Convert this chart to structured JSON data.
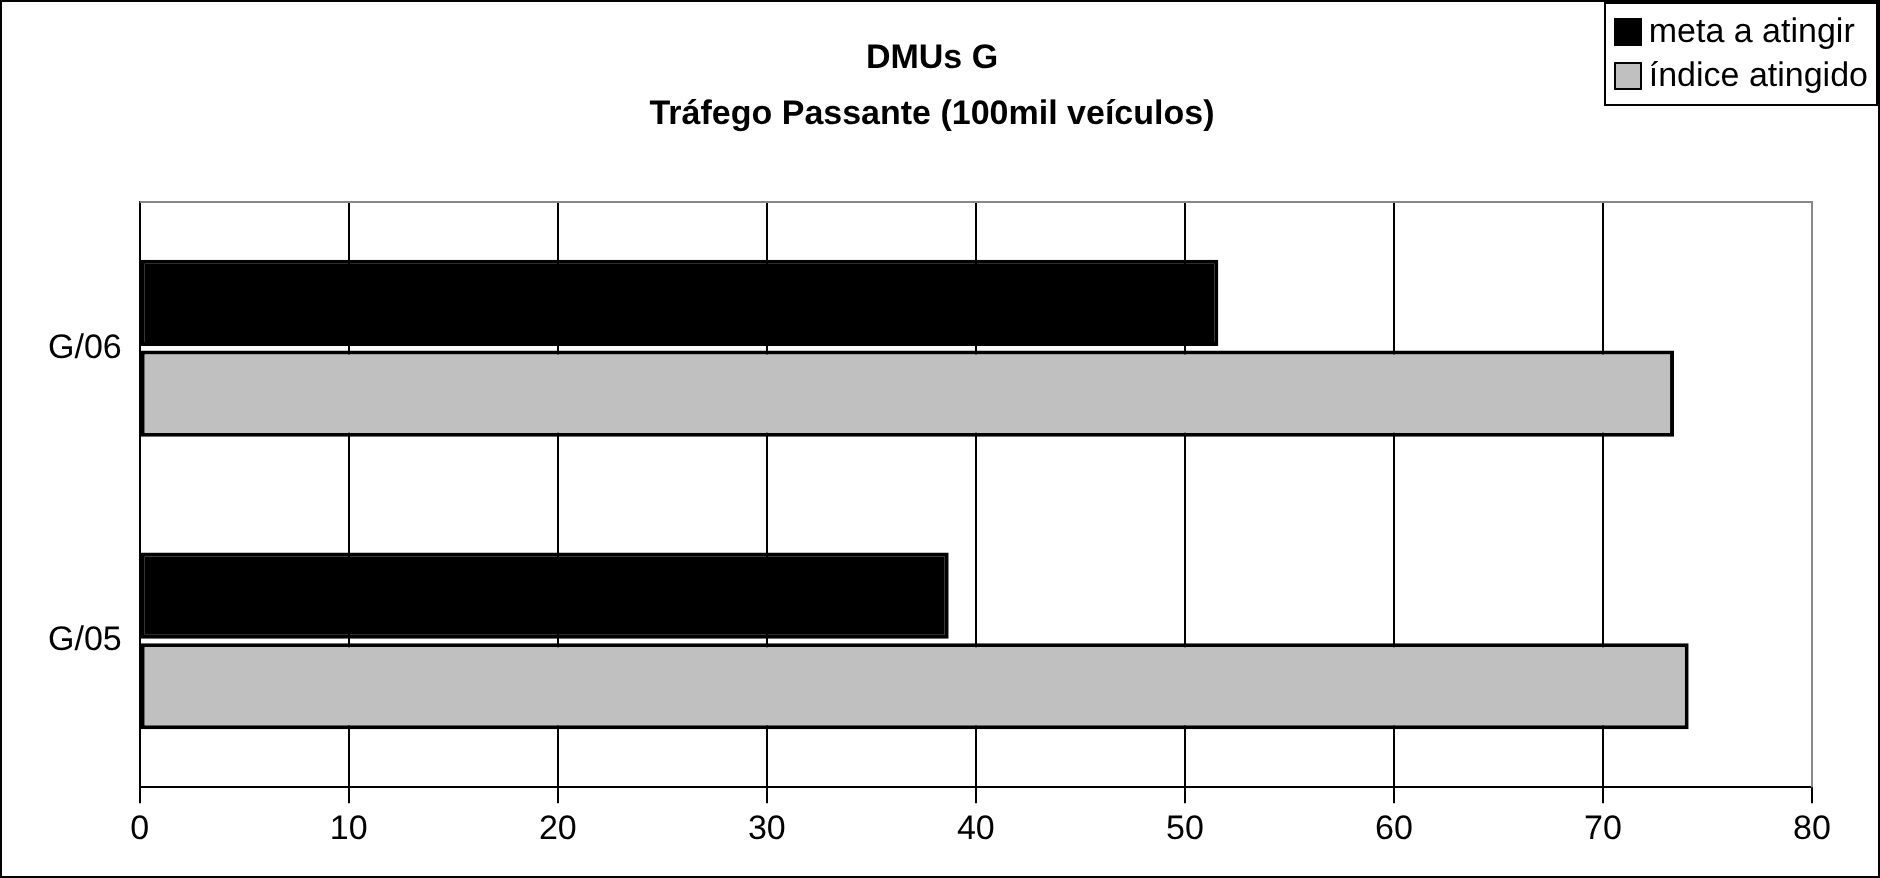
{
  "chart_data": {
    "type": "bar",
    "orientation": "horizontal",
    "title": "DMUs G\nTráfego Passante (100mil veículos)",
    "categories": [
      "G/06",
      "G/05"
    ],
    "series": [
      {
        "name": "meta a atingir",
        "color": "#000000",
        "values": [
          51.6,
          38.7
        ]
      },
      {
        "name": "índice atingido",
        "color": "#c0c0c0",
        "values": [
          73.4,
          74.1
        ]
      }
    ],
    "xlim": [
      0,
      80
    ],
    "xticks": [
      0,
      10,
      20,
      30,
      40,
      50,
      60,
      70,
      80
    ],
    "grid": "x",
    "legend": "top right"
  }
}
